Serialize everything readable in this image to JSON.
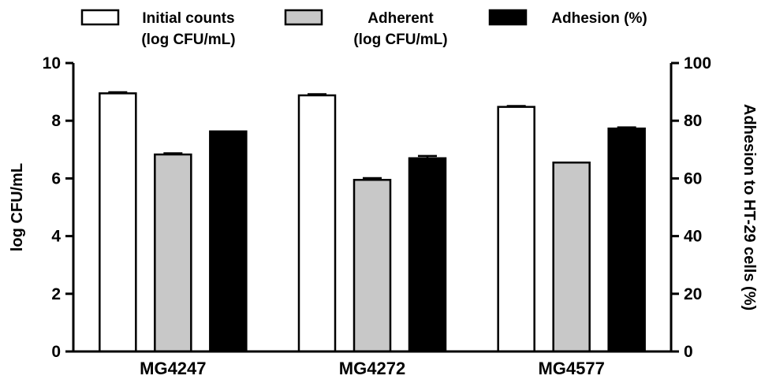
{
  "chart_data": {
    "type": "bar",
    "categories": [
      "MG4247",
      "MG4272",
      "MG4577"
    ],
    "series": [
      {
        "name": "Initial counts (log CFU/mL)",
        "legend_lines": [
          "Initial counts",
          "(log CFU/mL)"
        ],
        "axis": "left",
        "fill": "#ffffff",
        "values": [
          8.95,
          8.88,
          8.48
        ],
        "errors": [
          0.04,
          0.04,
          0.03
        ]
      },
      {
        "name": "Adherent (log CFU/mL)",
        "legend_lines": [
          "Adherent",
          "(log CFU/mL)"
        ],
        "axis": "left",
        "fill": "#c8c8c8",
        "values": [
          6.83,
          5.95,
          6.55
        ],
        "errors": [
          0.04,
          0.06,
          0.0
        ]
      },
      {
        "name": "Adhesion (%)",
        "legend_lines": [
          "Adhesion (%)"
        ],
        "axis": "right",
        "fill": "#000000",
        "values": [
          76.3,
          67.0,
          77.3
        ],
        "errors": [
          0.0,
          0.8,
          0.4
        ]
      }
    ],
    "y_left": {
      "label": "log CFU/mL",
      "ylim": [
        0,
        10
      ],
      "ticks": [
        "0",
        "2",
        "4",
        "6",
        "8",
        "10"
      ]
    },
    "y_right": {
      "label": "Adhesion to HT-29 cells (%)",
      "ylim": [
        0,
        100
      ],
      "ticks": [
        "0",
        "20",
        "40",
        "60",
        "80",
        "100"
      ]
    },
    "xlabel": "",
    "grid": false,
    "legend_position": "top"
  }
}
